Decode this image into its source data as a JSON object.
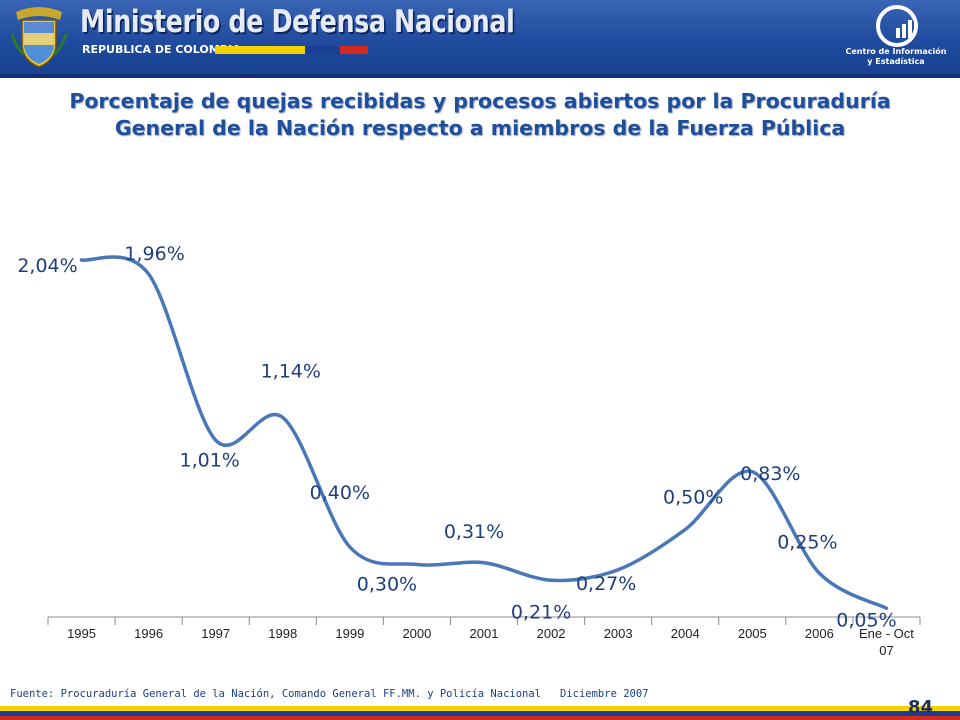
{
  "header": {
    "ministry_name": "Ministerio de Defensa Nacional",
    "republic": "REPUBLICA DE COLOMBIA",
    "center_name_line1": "Centro de Información",
    "center_name_line2": "y Estadística",
    "colors": {
      "band": "#1f4a9e",
      "flag_yellow": "#f3d200",
      "flag_blue": "#1c3f94",
      "flag_red": "#d52b1e"
    }
  },
  "chart_data": {
    "type": "line",
    "title": "Porcentaje de quejas recibidas y procesos abiertos por la Procuraduría General de la Nación respecto a miembros de la Fuerza Pública",
    "title_lines": [
      "Porcentaje de quejas recibidas y procesos abiertos por la Procuraduría",
      "General de la Nación respecto a miembros de la Fuerza Pública"
    ],
    "categories": [
      "1995",
      "1996",
      "1997",
      "1998",
      "1999",
      "2000",
      "2001",
      "2002",
      "2003",
      "2004",
      "2005",
      "2006",
      "Ene - Oct 07"
    ],
    "category_lines": [
      [
        "1995"
      ],
      [
        "1996"
      ],
      [
        "1997"
      ],
      [
        "1998"
      ],
      [
        "1999"
      ],
      [
        "2000"
      ],
      [
        "2001"
      ],
      [
        "2002"
      ],
      [
        "2003"
      ],
      [
        "2004"
      ],
      [
        "2005"
      ],
      [
        "2006"
      ],
      [
        "Ene - Oct",
        "07"
      ]
    ],
    "values": [
      2.04,
      1.96,
      1.01,
      1.14,
      0.4,
      0.3,
      0.31,
      0.21,
      0.27,
      0.5,
      0.83,
      0.25,
      0.05
    ],
    "data_labels": [
      "2,04%",
      "1,96%",
      "1,01%",
      "1,14%",
      "0,40%",
      "0,30%",
      "0,31%",
      "0,21%",
      "0,27%",
      "0,50%",
      "0,83%",
      "0,25%",
      "0,05%"
    ],
    "series_color": "#4a77b8",
    "label_color": "#1f3f80",
    "ylim": [
      0,
      2.2
    ],
    "grid": false,
    "legend": "none"
  },
  "footer": {
    "source": "Fuente: Procuraduría General de la Nación, Comando General FF.MM. y Policía Nacional",
    "date": "Diciembre 2007",
    "page_number": "84"
  }
}
